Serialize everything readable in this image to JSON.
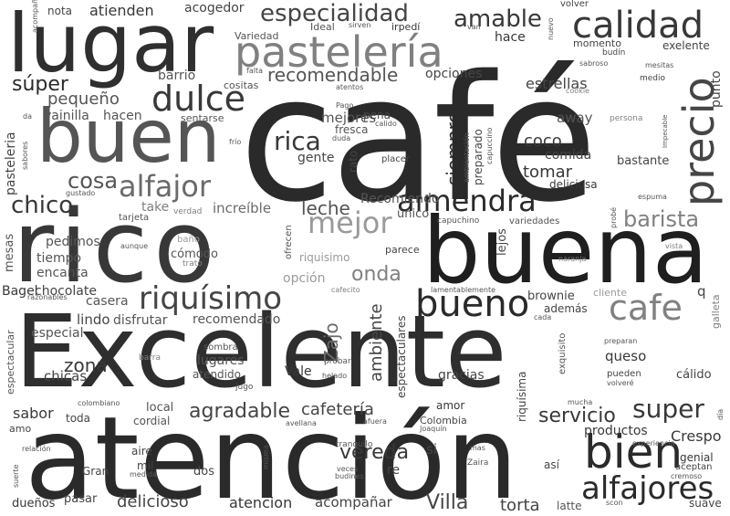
{
  "words": [
    "café",
    "Excelente",
    "atención",
    "rico",
    "buena",
    "lugar",
    "buen",
    "pastelería",
    "bien",
    "calidad",
    "precio",
    "mejor",
    "dulce",
    "almendra",
    "riquísimo",
    "bueno",
    "alfajor",
    "alfajores",
    "cafe",
    "especialidad",
    "amable",
    "barista",
    "rica",
    "cosa",
    "chico",
    "leche",
    "super",
    "agradable",
    "servicio",
    "Villa",
    "onda",
    "recomendable",
    "súper",
    "pequeño",
    "siempre",
    "tomar",
    "coco",
    "Zajo",
    "vereda",
    "cafetería",
    "ambiente",
    "torta",
    "zona",
    "chicas",
    "sabor",
    "delicioso",
    "atencion",
    "acompañar",
    "Crespo",
    "productos",
    "queso",
    "gracias",
    "estrellas",
    "opciones",
    "comida",
    "Recomiendo",
    "increíble",
    "barrio",
    "mejores",
    "vainilla",
    "hacen",
    "pedimos",
    "tiempo",
    "encanta",
    "Bagel",
    "chocolate",
    "casera",
    "lindo",
    "disfrutar",
    "recomendado",
    "especial",
    "lugares",
    "atendido",
    "cómodo",
    "baño",
    "único",
    "lejos",
    "variedades",
    "capuchino",
    "brownie",
    "además",
    "cliente",
    "galleta",
    "cálido",
    "gente",
    "rato",
    "fresca",
    "pena",
    "preparado",
    "away",
    "deliciosa",
    "bastante",
    "atienden",
    "acogedor",
    "nota",
    "Variedad",
    "Ideal",
    "sirven",
    "irpedí",
    "van",
    "nuevo",
    "volver",
    "exelente",
    "momento",
    "budín",
    "sabroso",
    "medio",
    "mesitas",
    "cookie",
    "punto",
    "persona",
    "Impecable",
    "espuma",
    "vista",
    "naranja",
    "parece",
    "ofrecen",
    "riquisimo",
    "opción",
    "take",
    "verdad",
    "aunque",
    "trato",
    "tarjeta",
    "gustado",
    "sabores",
    "frío",
    "sentarse",
    "cositas",
    "falta",
    "atentos",
    "Pago",
    "da",
    "duda",
    "calido",
    "placer",
    "capuccino",
    "ambientación",
    "probé",
    "pasteleria",
    "acompaña",
    "mesas",
    "razonables",
    "cafecito",
    "lamentablemente",
    "sombra",
    "barra",
    "jugo",
    "probar",
    "helado",
    "espectaculares",
    "Vale",
    "local",
    "cordial",
    "amor",
    "toda",
    "amo",
    "colombiano",
    "relación",
    "aire",
    "mil",
    "medida",
    "Gran",
    "dueños",
    "pasar",
    "dos",
    "misma",
    "avellana",
    "tranquilo",
    "afuera",
    "Colombia",
    "Joaquín",
    "re",
    "veces",
    "budines",
    "si",
    "mas",
    "Zaira",
    "así",
    "experiencia",
    "genial",
    "aceptan",
    "cremoso",
    "latte",
    "scon",
    "suave",
    "mucha",
    "pueden",
    "volveré",
    "preparan",
    "exquisito",
    "riquísima",
    "día",
    "suerte",
    "espectacular",
    "q",
    "cada",
    "hace"
  ],
  "colors": [
    "#2a2a2a",
    "#383838",
    "#454545",
    "#555555",
    "#6b6b6b",
    "#808080",
    "#9a9a9a"
  ]
}
